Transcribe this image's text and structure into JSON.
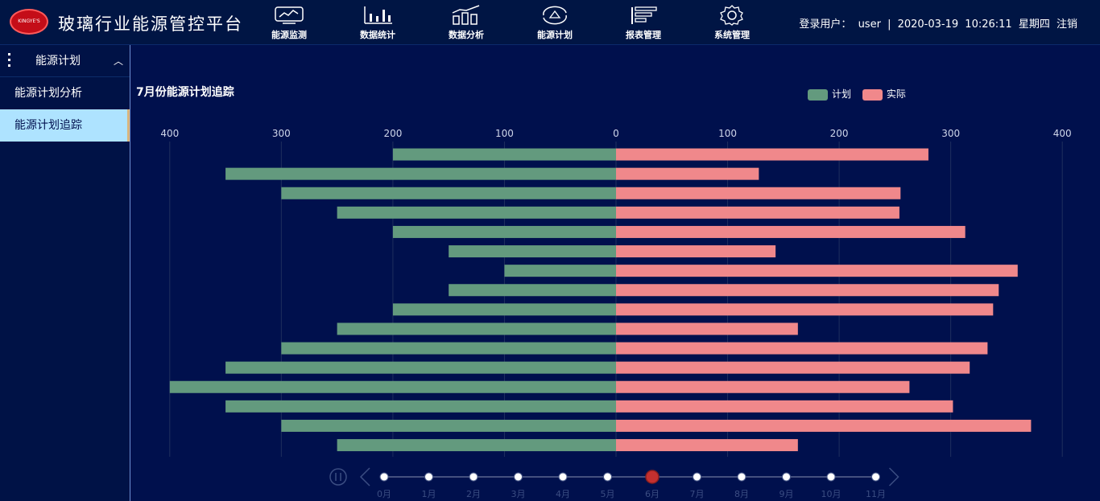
{
  "header": {
    "logo_text": "KINGYE'S",
    "app_title": "玻璃行业能源管控平台",
    "nav": [
      {
        "label": "能源监测",
        "icon": "monitor-chart-icon"
      },
      {
        "label": "数据统计",
        "icon": "bar-stats-icon"
      },
      {
        "label": "数据分析",
        "icon": "analysis-chart-icon"
      },
      {
        "label": "能源计划",
        "icon": "energy-cycle-icon"
      },
      {
        "label": "报表管理",
        "icon": "report-icon"
      },
      {
        "label": "系统管理",
        "icon": "gear-icon"
      }
    ],
    "user_label": "登录用户：",
    "user_name": "user",
    "separator": "|",
    "date": "2020-03-19",
    "time": "10:26:11",
    "weekday": "星期四",
    "logout": "注销"
  },
  "sidebar": {
    "section_title": "能源计划",
    "items": [
      {
        "label": "能源计划分析"
      },
      {
        "label": "能源计划追踪"
      }
    ],
    "active_index": 1
  },
  "chart_data": {
    "type": "bar",
    "orientation": "horizontal-diverging",
    "title": "7月份能源计划追踪",
    "legend": [
      "计划",
      "实际"
    ],
    "colors": {
      "计划": "#639a7e",
      "实际": "#f0888b"
    },
    "x_ticks_left": [
      "400",
      "300",
      "200",
      "100",
      "0"
    ],
    "x_ticks_right": [
      "100",
      "200",
      "300",
      "400"
    ],
    "xlim": [
      -400,
      400
    ],
    "series": [
      {
        "name": "计划",
        "values": [
          200,
          350,
          300,
          250,
          200,
          150,
          100,
          150,
          200,
          250,
          300,
          350,
          400,
          350,
          300,
          250
        ]
      },
      {
        "name": "实际",
        "values": [
          280,
          128,
          255,
          254,
          313,
          143,
          360,
          343,
          338,
          163,
          333,
          317,
          263,
          302,
          372,
          163
        ]
      }
    ],
    "timeline": {
      "labels": [
        "0月",
        "1月",
        "2月",
        "3月",
        "4月",
        "5月",
        "6月",
        "7月",
        "8月",
        "9月",
        "10月",
        "11月"
      ],
      "current_index": 6
    }
  }
}
